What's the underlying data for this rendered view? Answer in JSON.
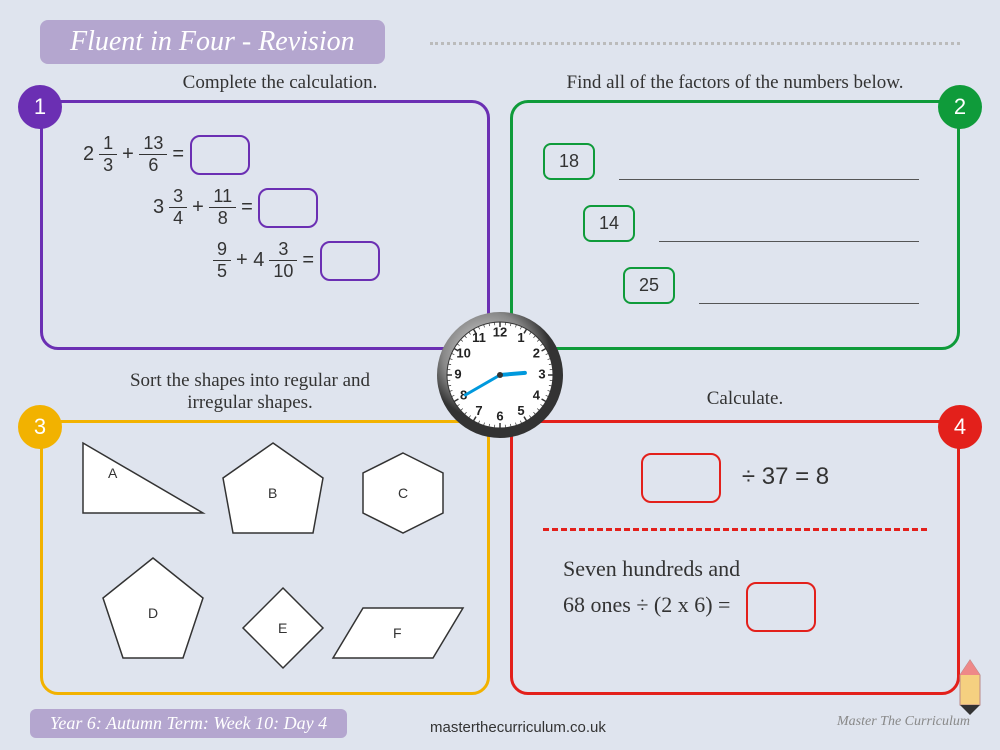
{
  "header": {
    "title": "Fluent in Four - Revision"
  },
  "colors": {
    "purple": "#6b2fb3",
    "green": "#0f9b3a",
    "yellow": "#f2b200",
    "red": "#e3201b",
    "badge_bg": "#b4a6cf",
    "page_bg": "#dfe4ee"
  },
  "panel1": {
    "badge": "1",
    "prompt": "Complete the calculation.",
    "eq1": {
      "whole": "2",
      "n1": "1",
      "d1": "3",
      "n2": "13",
      "d2": "6"
    },
    "eq2": {
      "whole": "3",
      "n1": "3",
      "d1": "4",
      "n2": "11",
      "d2": "8"
    },
    "eq3": {
      "n1": "9",
      "d1": "5",
      "whole": "4",
      "n2": "3",
      "d2": "10"
    }
  },
  "panel2": {
    "badge": "2",
    "prompt": "Find all of the factors of the numbers below.",
    "numbers": [
      "18",
      "14",
      "25"
    ]
  },
  "panel3": {
    "badge": "3",
    "prompt": "Sort the shapes into regular and irregular shapes.",
    "labels": [
      "A",
      "B",
      "C",
      "D",
      "E",
      "F"
    ]
  },
  "panel4": {
    "badge": "4",
    "prompt": "Calculate.",
    "eq1_suffix": "÷ 37 = 8",
    "eq2_line1": "Seven hundreds and",
    "eq2_line2": "68 ones ÷ (2 x 6) ="
  },
  "clock": {
    "numbers": [
      "12",
      "1",
      "2",
      "3",
      "4",
      "5",
      "6",
      "7",
      "8",
      "9",
      "10",
      "11"
    ],
    "hour_angle": 85,
    "minute_angle": -120
  },
  "footer": {
    "term": "Year 6: Autumn Term: Week 10: Day 4",
    "url": "masterthecurriculum.co.uk",
    "brand": "Master The Curriculum"
  }
}
